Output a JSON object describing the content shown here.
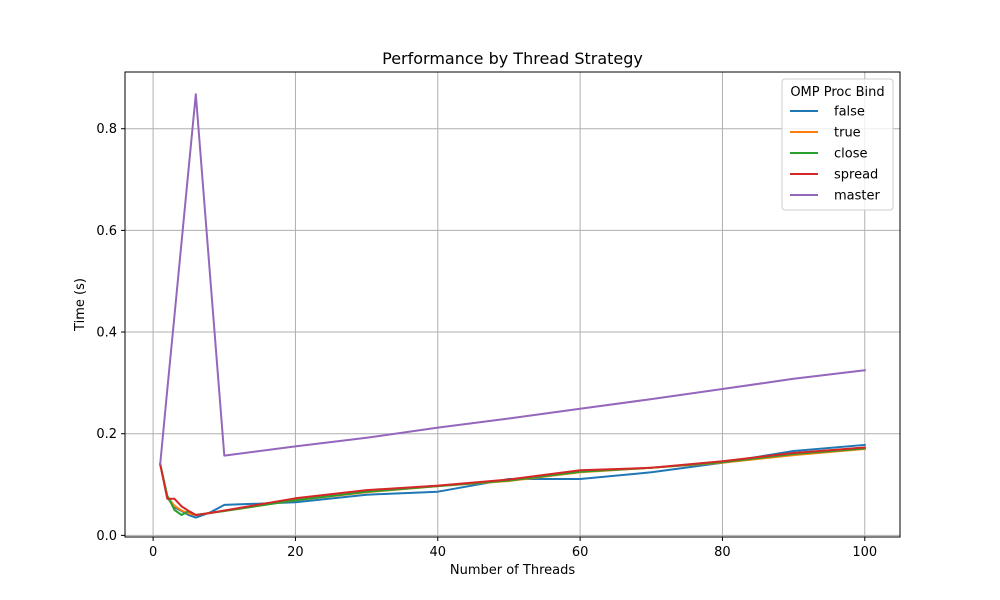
{
  "chart_data": {
    "type": "line",
    "title": "Performance by Thread Strategy",
    "xlabel": "Number of Threads",
    "ylabel": "Time (s)",
    "xlim": [
      -3.95,
      104.95
    ],
    "ylim": [
      -0.0032,
      0.9116
    ],
    "xticks": [
      0,
      20,
      40,
      60,
      80,
      100
    ],
    "yticks": [
      0.0,
      0.2,
      0.4,
      0.6,
      0.8
    ],
    "xtick_labels": [
      "0",
      "20",
      "40",
      "60",
      "80",
      "100"
    ],
    "ytick_labels": [
      "0.0",
      "0.2",
      "0.4",
      "0.6",
      "0.8"
    ],
    "grid": true,
    "legend": {
      "title": "OMP Proc Bind",
      "position": "top-right"
    },
    "x": [
      1,
      2,
      3,
      4,
      5,
      6,
      8,
      10,
      20,
      30,
      40,
      50,
      60,
      70,
      80,
      90,
      100
    ],
    "series": [
      {
        "name": "false",
        "color": "#1f77b4",
        "values": [
          0.14,
          0.075,
          0.055,
          0.048,
          0.04,
          0.035,
          0.045,
          0.06,
          0.065,
          0.08,
          0.086,
          0.111,
          0.111,
          0.124,
          0.143,
          0.166,
          0.178
        ]
      },
      {
        "name": "true",
        "color": "#ff7f0e",
        "values": [
          0.14,
          0.076,
          0.058,
          0.049,
          0.043,
          0.04,
          0.044,
          0.048,
          0.069,
          0.085,
          0.097,
          0.107,
          0.124,
          0.133,
          0.143,
          0.158,
          0.17
        ]
      },
      {
        "name": "close",
        "color": "#2ca02c",
        "values": [
          0.14,
          0.078,
          0.05,
          0.04,
          0.048,
          0.04,
          0.044,
          0.048,
          0.069,
          0.086,
          0.097,
          0.108,
          0.125,
          0.133,
          0.144,
          0.16,
          0.171
        ]
      },
      {
        "name": "spread",
        "color": "#d62728",
        "values": [
          0.14,
          0.072,
          0.072,
          0.057,
          0.048,
          0.04,
          0.044,
          0.049,
          0.073,
          0.089,
          0.098,
          0.11,
          0.128,
          0.133,
          0.146,
          0.162,
          0.173
        ]
      },
      {
        "name": "master",
        "color": "#9467bd",
        "values": [
          0.14,
          0.287,
          0.433,
          0.578,
          0.723,
          0.868,
          0.513,
          0.157,
          0.175,
          0.192,
          0.212,
          0.23,
          0.249,
          0.268,
          0.288,
          0.308,
          0.325
        ]
      }
    ]
  }
}
